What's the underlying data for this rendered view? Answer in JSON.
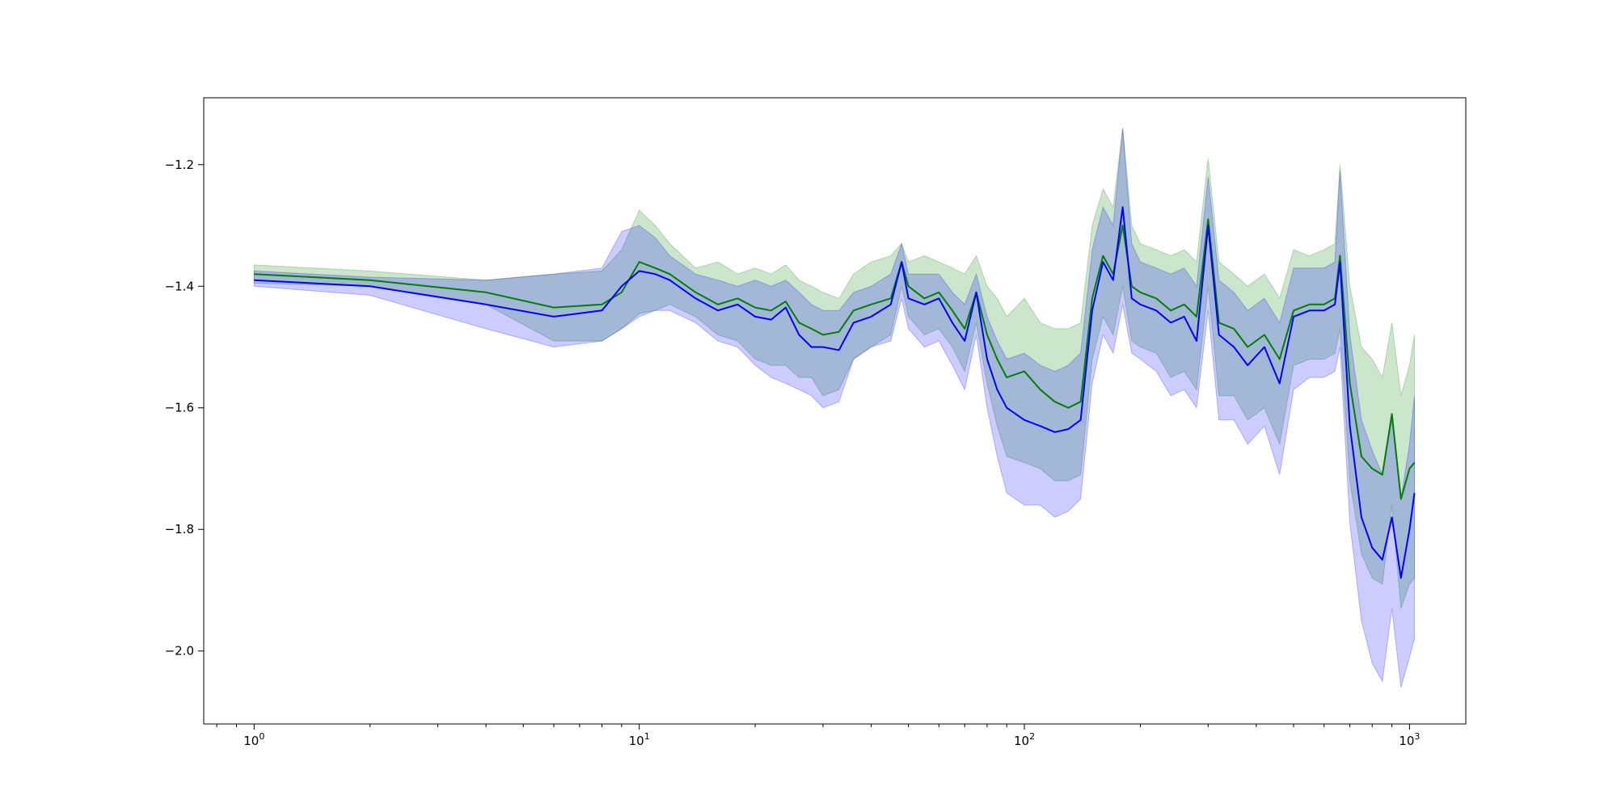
{
  "chart_data": {
    "type": "line",
    "title": "",
    "xlabel": "",
    "ylabel": "",
    "x_scale": "log",
    "xlim": [
      0.74,
      1400
    ],
    "ylim": [
      -2.12,
      -1.09
    ],
    "grid": false,
    "x_major_ticks": [
      {
        "value": 1,
        "base": "10",
        "exp": "0"
      },
      {
        "value": 10,
        "base": "10",
        "exp": "1"
      },
      {
        "value": 100,
        "base": "10",
        "exp": "2"
      },
      {
        "value": 1000,
        "base": "10",
        "exp": "3"
      }
    ],
    "y_ticks": [
      {
        "value": -1.2,
        "label": "−1.2"
      },
      {
        "value": -1.4,
        "label": "−1.4"
      },
      {
        "value": -1.6,
        "label": "−1.6"
      },
      {
        "value": -1.8,
        "label": "−1.8"
      },
      {
        "value": -2.0,
        "label": "−2.0"
      }
    ],
    "x": [
      1,
      2,
      4,
      6,
      8,
      9,
      10,
      11,
      12,
      14,
      16,
      18,
      20,
      22,
      24,
      26,
      28,
      30,
      33,
      36,
      40,
      45,
      48,
      50,
      55,
      60,
      65,
      70,
      75,
      80,
      85,
      90,
      100,
      110,
      120,
      130,
      140,
      150,
      160,
      170,
      180,
      190,
      200,
      220,
      240,
      260,
      280,
      300,
      320,
      350,
      380,
      420,
      460,
      500,
      550,
      600,
      640,
      660,
      700,
      750,
      800,
      850,
      900,
      950,
      1000,
      1030
    ],
    "series": [
      {
        "color": "#008000",
        "band_color": "#008000",
        "values": [
          -1.38,
          -1.39,
          -1.41,
          -1.435,
          -1.43,
          -1.41,
          -1.36,
          -1.37,
          -1.38,
          -1.41,
          -1.43,
          -1.42,
          -1.435,
          -1.44,
          -1.425,
          -1.46,
          -1.47,
          -1.48,
          -1.475,
          -1.44,
          -1.43,
          -1.42,
          -1.36,
          -1.4,
          -1.42,
          -1.41,
          -1.44,
          -1.47,
          -1.41,
          -1.48,
          -1.52,
          -1.55,
          -1.54,
          -1.57,
          -1.59,
          -1.6,
          -1.59,
          -1.42,
          -1.35,
          -1.38,
          -1.3,
          -1.4,
          -1.41,
          -1.42,
          -1.44,
          -1.43,
          -1.45,
          -1.29,
          -1.46,
          -1.47,
          -1.5,
          -1.48,
          -1.52,
          -1.44,
          -1.43,
          -1.43,
          -1.42,
          -1.35,
          -1.56,
          -1.68,
          -1.7,
          -1.71,
          -1.61,
          -1.75,
          -1.7,
          -1.69
        ],
        "upper": [
          -1.365,
          -1.375,
          -1.39,
          -1.38,
          -1.375,
          -1.34,
          -1.275,
          -1.3,
          -1.33,
          -1.37,
          -1.36,
          -1.38,
          -1.37,
          -1.38,
          -1.365,
          -1.39,
          -1.4,
          -1.41,
          -1.42,
          -1.38,
          -1.36,
          -1.35,
          -1.33,
          -1.36,
          -1.35,
          -1.36,
          -1.37,
          -1.38,
          -1.35,
          -1.4,
          -1.42,
          -1.45,
          -1.42,
          -1.46,
          -1.47,
          -1.47,
          -1.46,
          -1.3,
          -1.24,
          -1.27,
          -1.14,
          -1.3,
          -1.33,
          -1.34,
          -1.35,
          -1.34,
          -1.36,
          -1.19,
          -1.36,
          -1.38,
          -1.4,
          -1.38,
          -1.42,
          -1.34,
          -1.35,
          -1.34,
          -1.33,
          -1.2,
          -1.4,
          -1.5,
          -1.52,
          -1.55,
          -1.46,
          -1.58,
          -1.53,
          -1.48
        ],
        "lower": [
          -1.395,
          -1.4,
          -1.43,
          -1.49,
          -1.49,
          -1.47,
          -1.445,
          -1.44,
          -1.43,
          -1.45,
          -1.48,
          -1.49,
          -1.52,
          -1.53,
          -1.53,
          -1.55,
          -1.55,
          -1.58,
          -1.57,
          -1.52,
          -1.5,
          -1.48,
          -1.4,
          -1.45,
          -1.48,
          -1.47,
          -1.5,
          -1.54,
          -1.46,
          -1.56,
          -1.63,
          -1.68,
          -1.69,
          -1.7,
          -1.72,
          -1.72,
          -1.71,
          -1.52,
          -1.45,
          -1.48,
          -1.4,
          -1.49,
          -1.5,
          -1.51,
          -1.55,
          -1.54,
          -1.57,
          -1.4,
          -1.58,
          -1.58,
          -1.62,
          -1.6,
          -1.66,
          -1.53,
          -1.52,
          -1.52,
          -1.51,
          -1.47,
          -1.72,
          -1.84,
          -1.88,
          -1.89,
          -1.76,
          -1.93,
          -1.89,
          -1.88
        ]
      },
      {
        "color": "#0000ff",
        "band_color": "#0000ff",
        "values": [
          -1.39,
          -1.4,
          -1.43,
          -1.45,
          -1.44,
          -1.4,
          -1.375,
          -1.38,
          -1.39,
          -1.42,
          -1.44,
          -1.43,
          -1.45,
          -1.455,
          -1.435,
          -1.48,
          -1.5,
          -1.5,
          -1.505,
          -1.46,
          -1.45,
          -1.43,
          -1.36,
          -1.42,
          -1.43,
          -1.42,
          -1.46,
          -1.49,
          -1.41,
          -1.52,
          -1.57,
          -1.6,
          -1.62,
          -1.63,
          -1.64,
          -1.635,
          -1.62,
          -1.44,
          -1.36,
          -1.39,
          -1.27,
          -1.42,
          -1.43,
          -1.44,
          -1.46,
          -1.45,
          -1.49,
          -1.3,
          -1.48,
          -1.5,
          -1.53,
          -1.5,
          -1.56,
          -1.45,
          -1.44,
          -1.44,
          -1.43,
          -1.36,
          -1.63,
          -1.78,
          -1.83,
          -1.85,
          -1.78,
          -1.88,
          -1.8,
          -1.74
        ],
        "upper": [
          -1.375,
          -1.385,
          -1.39,
          -1.38,
          -1.37,
          -1.31,
          -1.3,
          -1.32,
          -1.35,
          -1.38,
          -1.39,
          -1.4,
          -1.39,
          -1.4,
          -1.39,
          -1.41,
          -1.43,
          -1.44,
          -1.44,
          -1.41,
          -1.4,
          -1.38,
          -1.33,
          -1.38,
          -1.38,
          -1.38,
          -1.41,
          -1.43,
          -1.38,
          -1.45,
          -1.49,
          -1.52,
          -1.51,
          -1.53,
          -1.54,
          -1.53,
          -1.51,
          -1.34,
          -1.27,
          -1.3,
          -1.14,
          -1.33,
          -1.36,
          -1.37,
          -1.38,
          -1.37,
          -1.4,
          -1.22,
          -1.39,
          -1.41,
          -1.44,
          -1.42,
          -1.46,
          -1.37,
          -1.37,
          -1.37,
          -1.36,
          -1.21,
          -1.48,
          -1.62,
          -1.67,
          -1.71,
          -1.62,
          -1.75,
          -1.66,
          -1.58
        ],
        "lower": [
          -1.4,
          -1.415,
          -1.47,
          -1.5,
          -1.49,
          -1.47,
          -1.45,
          -1.44,
          -1.44,
          -1.46,
          -1.49,
          -1.5,
          -1.53,
          -1.55,
          -1.56,
          -1.57,
          -1.58,
          -1.6,
          -1.59,
          -1.52,
          -1.5,
          -1.49,
          -1.42,
          -1.47,
          -1.5,
          -1.49,
          -1.53,
          -1.57,
          -1.48,
          -1.6,
          -1.68,
          -1.74,
          -1.76,
          -1.76,
          -1.78,
          -1.77,
          -1.75,
          -1.56,
          -1.48,
          -1.51,
          -1.43,
          -1.51,
          -1.52,
          -1.54,
          -1.58,
          -1.57,
          -1.6,
          -1.44,
          -1.62,
          -1.62,
          -1.66,
          -1.63,
          -1.71,
          -1.57,
          -1.55,
          -1.55,
          -1.54,
          -1.5,
          -1.79,
          -1.95,
          -2.02,
          -2.05,
          -1.93,
          -2.06,
          -2.01,
          -1.98
        ]
      }
    ]
  }
}
